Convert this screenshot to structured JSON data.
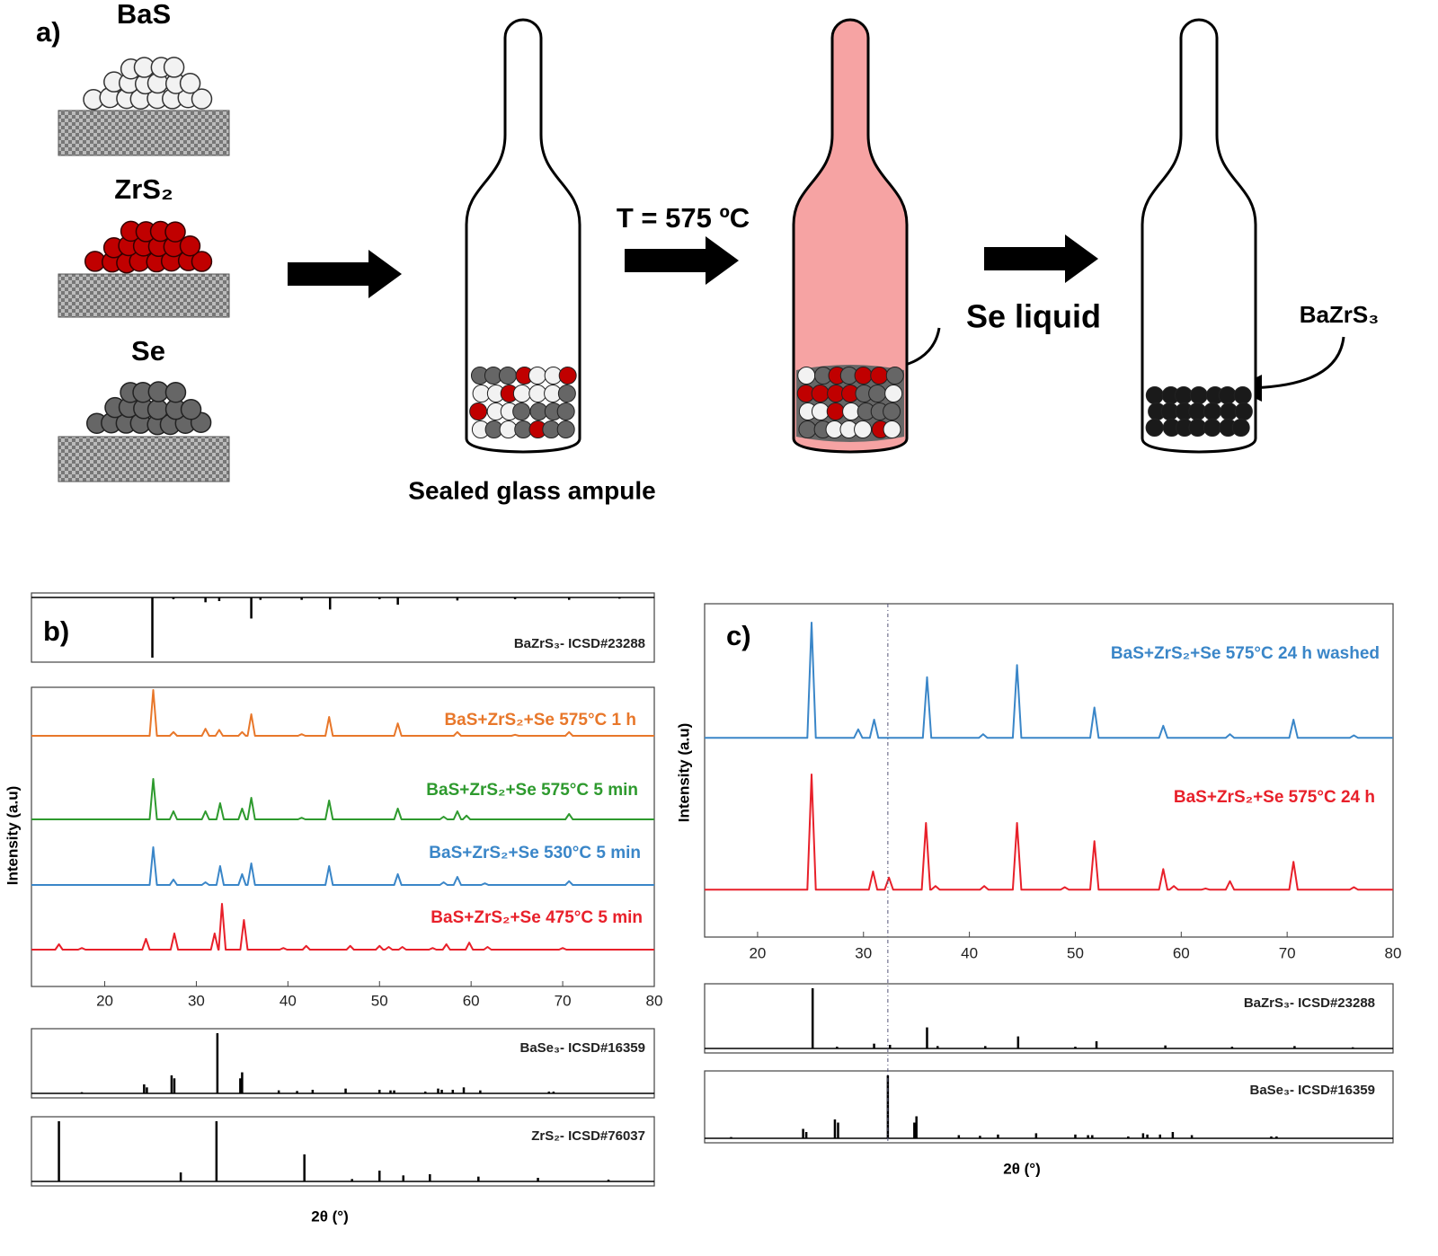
{
  "diagram": {
    "panel": "a)",
    "precursors": [
      "BaS",
      "ZrS₂",
      "Se"
    ],
    "ampule_label": "Sealed glass ampule",
    "temperature": "T = 575 ºC",
    "liquid_label": "Se liquid",
    "product_label": "BaZrS₃"
  },
  "chart_data": [
    {
      "type": "line",
      "panel": "b)",
      "xlabel": "2θ (°)",
      "ylabel": "Intensity (a.u)",
      "xlim": [
        12,
        80
      ],
      "xticks": [
        20,
        30,
        40,
        50,
        60,
        70,
        80
      ],
      "ylim": [
        0,
        100
      ],
      "series": [
        {
          "name": "BaS+ZrS₂+Se 575°C 1 h",
          "color": "#e8772a",
          "x": [
            12,
            24.9,
            25.3,
            25.7,
            27.1,
            27.5,
            27.9,
            30.6,
            31,
            31.4,
            32.1,
            32.5,
            32.9,
            34.6,
            35,
            35.4,
            35.6,
            36,
            36.4,
            41.1,
            41.5,
            41.9,
            44.1,
            44.5,
            44.9,
            51.6,
            52,
            52.4,
            58.1,
            58.5,
            58.9,
            64.4,
            64.8,
            65.2,
            70.3,
            70.7,
            71.1,
            80
          ],
          "values": [
            5,
            5,
            90,
            5,
            5,
            12,
            5,
            5,
            18,
            5,
            5,
            16,
            5,
            5,
            12,
            5,
            5,
            45,
            5,
            5,
            8,
            5,
            5,
            40,
            5,
            5,
            28,
            5,
            5,
            12,
            5,
            5,
            7,
            5,
            5,
            12,
            5,
            5
          ]
        },
        {
          "name": "BaS+ZrS₂+Se 575°C 5 min",
          "color": "#2e9a2e",
          "x": [
            12,
            24.9,
            25.3,
            25.7,
            27.1,
            27.5,
            27.9,
            30.6,
            31,
            31.4,
            32.2,
            32.6,
            33,
            34.6,
            35,
            35.4,
            35.6,
            36,
            36.4,
            41.1,
            41.5,
            41.9,
            44.1,
            44.5,
            44.9,
            51.6,
            52,
            52.4,
            56.6,
            57,
            57.4,
            58.1,
            58.5,
            58.9,
            59.1,
            59.5,
            59.9,
            70.3,
            70.7,
            71.1,
            80
          ],
          "values": [
            5,
            5,
            80,
            5,
            5,
            20,
            5,
            5,
            20,
            5,
            5,
            35,
            5,
            5,
            25,
            5,
            5,
            45,
            5,
            5,
            8,
            5,
            5,
            40,
            5,
            5,
            25,
            5,
            5,
            10,
            5,
            5,
            20,
            5,
            5,
            12,
            5,
            5,
            15,
            5,
            5
          ]
        },
        {
          "name": "BaS+ZrS₂+Se 530°C 5 min",
          "color": "#3a86c8",
          "x": [
            12,
            24.9,
            25.3,
            25.7,
            27.1,
            27.5,
            27.9,
            30.6,
            31,
            31.4,
            32.2,
            32.6,
            33,
            34.6,
            35,
            35.4,
            35.6,
            36,
            36.4,
            44.1,
            44.5,
            44.9,
            51.6,
            52,
            52.4,
            56.6,
            57,
            57.4,
            58.1,
            58.5,
            58.9,
            61.1,
            61.5,
            61.9,
            70.3,
            70.7,
            71.1,
            80
          ],
          "values": [
            5,
            5,
            75,
            5,
            5,
            15,
            5,
            5,
            10,
            5,
            5,
            40,
            5,
            5,
            25,
            5,
            5,
            45,
            5,
            5,
            40,
            5,
            5,
            25,
            5,
            5,
            10,
            5,
            5,
            20,
            5,
            5,
            8,
            5,
            5,
            12,
            5,
            5
          ]
        },
        {
          "name": "BaS+ZrS₂+Se 475°C 5 min",
          "color": "#e8202a",
          "x": [
            12,
            14.6,
            15,
            15.4,
            17.1,
            17.5,
            17.9,
            24.1,
            24.5,
            24.9,
            27.2,
            27.6,
            28,
            31.6,
            32,
            32.4,
            32.45,
            32.8,
            33.2,
            34.8,
            35.2,
            35.6,
            39.1,
            39.5,
            39.9,
            41.6,
            42,
            42.4,
            46.4,
            46.8,
            47.2,
            49.6,
            50,
            50.4,
            50.6,
            51,
            51.4,
            52.1,
            52.5,
            52.9,
            55.4,
            55.8,
            56.2,
            56.9,
            57.3,
            57.7,
            59.4,
            59.8,
            60.2,
            61.4,
            61.8,
            62.2,
            69.6,
            70,
            70.4,
            80
          ],
          "values": [
            5,
            5,
            15,
            5,
            5,
            8,
            5,
            5,
            25,
            5,
            5,
            35,
            5,
            5,
            35,
            5,
            5,
            90,
            5,
            5,
            60,
            5,
            5,
            8,
            5,
            5,
            12,
            5,
            5,
            12,
            5,
            5,
            12,
            5,
            5,
            10,
            5,
            5,
            10,
            5,
            5,
            8,
            5,
            5,
            15,
            5,
            5,
            18,
            5,
            5,
            10,
            5,
            5,
            8,
            5,
            5
          ]
        }
      ],
      "references": [
        {
          "name": "BaZrS₃- ICSD#23288",
          "inverted": true,
          "x": [
            25.2,
            27.5,
            31,
            32.5,
            36,
            37,
            41.5,
            44.6,
            50,
            52,
            58.5,
            64.8,
            70.7,
            76.2
          ],
          "values": [
            100,
            3,
            8,
            6,
            35,
            4,
            4,
            20,
            3,
            12,
            5,
            3,
            4,
            2
          ]
        },
        {
          "name": "BaSe₃- ICSD#16359",
          "inverted": false,
          "x": [
            17.5,
            24.3,
            24.6,
            27.3,
            27.6,
            32.3,
            34.8,
            35,
            39,
            41,
            42.7,
            46.3,
            50,
            51.2,
            51.6,
            55,
            56.4,
            56.8,
            58,
            59.2,
            61,
            68.5,
            69
          ],
          "values": [
            2,
            15,
            10,
            30,
            25,
            100,
            25,
            35,
            5,
            4,
            6,
            8,
            6,
            5,
            5,
            3,
            8,
            6,
            6,
            10,
            5,
            3,
            3
          ]
        },
        {
          "name": "ZrS₂- ICSD#76037",
          "inverted": false,
          "x": [
            15,
            28.3,
            32.2,
            41.8,
            47,
            50,
            52.6,
            55.5,
            60.8,
            67.3,
            75
          ],
          "values": [
            100,
            15,
            100,
            45,
            4,
            18,
            10,
            12,
            8,
            6,
            3
          ]
        }
      ]
    },
    {
      "type": "line",
      "panel": "c)",
      "xlabel": "2θ (°)",
      "ylabel": "Intensity (a.u)",
      "xlim": [
        15,
        80
      ],
      "xticks": [
        20,
        30,
        40,
        50,
        60,
        70,
        80
      ],
      "ylim": [
        0,
        100
      ],
      "guide_x": 32.3,
      "series": [
        {
          "name": "BaS+ZrS₂+Se 575°C 24 h washed",
          "color": "#3a86c8",
          "x": [
            15,
            24.7,
            25.1,
            25.5,
            29.1,
            29.5,
            29.9,
            30.6,
            31,
            31.4,
            35.6,
            36,
            36.4,
            40.9,
            41.3,
            41.7,
            44.1,
            44.5,
            44.9,
            51.4,
            51.8,
            52.2,
            57.9,
            58.3,
            58.7,
            64.2,
            64.6,
            65,
            70.2,
            70.6,
            71,
            75.9,
            76.3,
            76.7,
            80
          ],
          "values": [
            5,
            5,
            100,
            5,
            5,
            12,
            5,
            5,
            20,
            5,
            5,
            55,
            5,
            5,
            8,
            5,
            5,
            65,
            5,
            5,
            30,
            5,
            5,
            15,
            5,
            5,
            8,
            5,
            5,
            20,
            5,
            5,
            7,
            5,
            5
          ]
        },
        {
          "name": "BaS+ZrS₂+Se 575°C 24 h",
          "color": "#e8202a",
          "x": [
            15,
            24.7,
            25.1,
            25.5,
            30.5,
            30.9,
            31.3,
            32,
            32.4,
            32.8,
            35.5,
            35.9,
            36.3,
            36.4,
            36.8,
            37.2,
            41,
            41.4,
            41.8,
            44.1,
            44.5,
            44.9,
            48.6,
            49,
            49.4,
            51.4,
            51.8,
            52.2,
            57.9,
            58.3,
            58.7,
            58.9,
            59.3,
            59.7,
            61.9,
            62.3,
            62.7,
            64.2,
            64.6,
            65,
            70.2,
            70.6,
            71,
            75.9,
            76.3,
            76.7,
            80
          ],
          "values": [
            5,
            5,
            100,
            5,
            5,
            20,
            5,
            5,
            15,
            5,
            5,
            60,
            5,
            5,
            8,
            5,
            5,
            8,
            5,
            5,
            60,
            5,
            5,
            7,
            5,
            5,
            45,
            5,
            5,
            22,
            5,
            5,
            8,
            5,
            5,
            6,
            5,
            5,
            12,
            5,
            5,
            28,
            5,
            5,
            7,
            5,
            5
          ]
        }
      ],
      "references": [
        {
          "name": "BaZrS₃- ICSD#23288",
          "inverted": false,
          "x": [
            25.2,
            27.5,
            31,
            32.5,
            36,
            37,
            41.5,
            44.6,
            50,
            52,
            58.5,
            64.8,
            70.7,
            76.2
          ],
          "values": [
            100,
            3,
            8,
            6,
            35,
            4,
            4,
            20,
            3,
            12,
            5,
            3,
            4,
            2
          ]
        },
        {
          "name": "BaSe₃- ICSD#16359",
          "inverted": false,
          "x": [
            17.5,
            24.3,
            24.6,
            27.3,
            27.6,
            32.3,
            34.8,
            35,
            39,
            41,
            42.7,
            46.3,
            50,
            51.2,
            51.6,
            55,
            56.4,
            56.8,
            58,
            59.2,
            61,
            68.5,
            69
          ],
          "values": [
            2,
            15,
            10,
            30,
            25,
            100,
            25,
            35,
            5,
            4,
            6,
            8,
            6,
            5,
            5,
            3,
            8,
            6,
            6,
            10,
            5,
            3,
            3
          ]
        }
      ]
    }
  ]
}
